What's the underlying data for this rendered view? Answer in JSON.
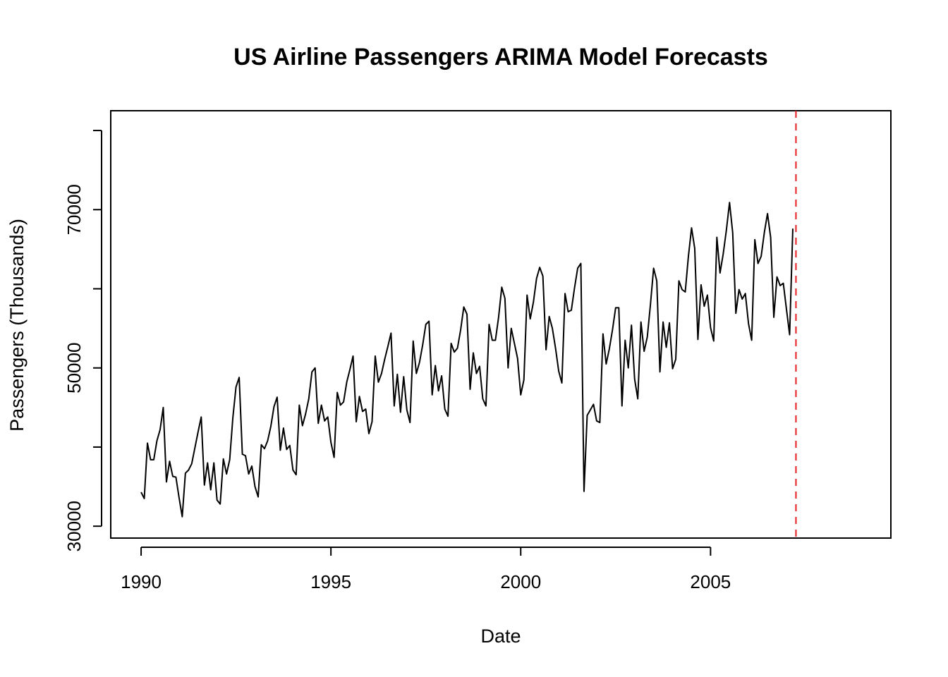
{
  "chart_data": {
    "type": "line",
    "title": "US Airline Passengers ARIMA Model Forecasts",
    "xlabel": "Date",
    "ylabel": "Passengers (Thousands)",
    "xlim": [
      1989.2,
      2009.75
    ],
    "ylim": [
      28500,
      82500
    ],
    "x_ticks": [
      1990,
      1995,
      2000,
      2005
    ],
    "x_tick_labels": [
      "1990",
      "1995",
      "2000",
      "2005"
    ],
    "y_ticks": [
      30000,
      40000,
      50000,
      60000,
      70000,
      80000
    ],
    "y_tick_labels": [
      "30000",
      "",
      "50000",
      "",
      "70000",
      ""
    ],
    "grid": false,
    "legend": "none",
    "forecast_start": 2007.25,
    "series": [
      {
        "color": "#000000",
        "x_start": 1990.0,
        "step": 0.08333333,
        "values": [
          34300,
          33500,
          40500,
          38400,
          38400,
          40800,
          42200,
          45000,
          35600,
          38200,
          36300,
          36200,
          33600,
          31200,
          36700,
          37100,
          37900,
          39900,
          41900,
          43800,
          35200,
          38000,
          34600,
          38000,
          33300,
          32800,
          38500,
          36600,
          38400,
          43700,
          47600,
          48800,
          39100,
          38900,
          36600,
          37600,
          35000,
          33700,
          40300,
          39800,
          40800,
          42600,
          45100,
          46300,
          39600,
          42400,
          39700,
          40200,
          37100,
          36500,
          45300,
          42700,
          44200,
          46100,
          49500,
          50000,
          43000,
          45300,
          43300,
          43800,
          40600,
          38700,
          46900,
          45300,
          45700,
          48200,
          49800,
          51500,
          43200,
          46400,
          44500,
          44800,
          41700,
          43200,
          51500,
          48200,
          49300,
          51100,
          52700,
          54400,
          45200,
          49200,
          44400,
          48900,
          44700,
          43100,
          53400,
          49300,
          50700,
          52900,
          55500,
          55900,
          46600,
          50300,
          47100,
          49000,
          44800,
          43900,
          53100,
          52000,
          52500,
          54800,
          57700,
          56800,
          47300,
          51900,
          49300,
          50200,
          46100,
          45200,
          55500,
          53500,
          53500,
          56400,
          60200,
          58800,
          50000,
          55000,
          53100,
          51200,
          46600,
          48500,
          59200,
          56200,
          58300,
          61300,
          62700,
          61600,
          52300,
          56500,
          55000,
          52500,
          49600,
          48100,
          59400,
          57100,
          57300,
          60100,
          62600,
          63200,
          34400,
          44000,
          44700,
          45400,
          43300,
          43100,
          54300,
          50500,
          52400,
          54800,
          57600,
          57600,
          45200,
          53500,
          50000,
          55400,
          48600,
          46100,
          55800,
          52100,
          53900,
          58000,
          62600,
          61000,
          49500,
          55800,
          52600,
          55700,
          49900,
          51100,
          61000,
          59900,
          59600,
          64100,
          67700,
          65100,
          53600,
          60500,
          57800,
          59200,
          55100,
          53400,
          66500,
          62000,
          64400,
          67400,
          70900,
          67100,
          56900,
          59900,
          58700,
          59400,
          55600,
          53500,
          66200,
          63200,
          64100,
          67100,
          69500,
          66500,
          56400,
          61500,
          60400,
          60700,
          57400,
          54200,
          67600
        ]
      }
    ]
  }
}
